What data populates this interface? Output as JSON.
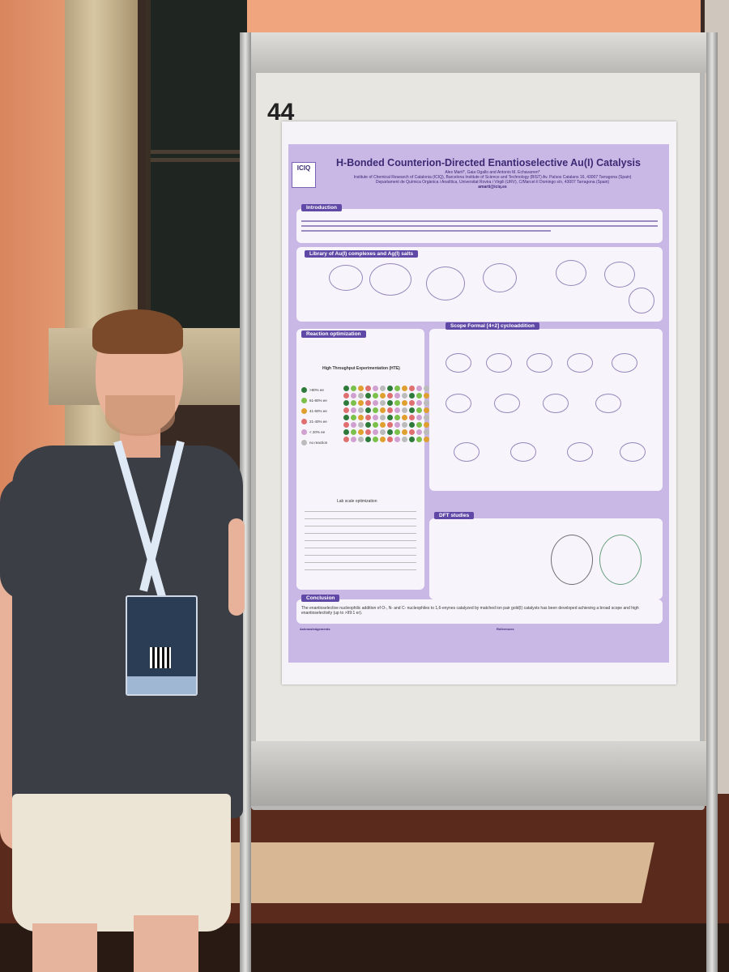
{
  "board": {
    "number": "44",
    "number_note": "8"
  },
  "poster": {
    "title": "H-Bonded Counterion-Directed Enantioselective Au(I) Catalysis",
    "authors": "Alex Martí*, Gaia Ogallo and Antonio M. Echavarren*",
    "affiliations": "Institute of Chemical Research of Catalonia (ICIQ), Barcelona Institute of Science and Technology (BIST) Av. Països Catalans 16, 43007 Tarragona (Spain)",
    "department": "Departament de Química Orgànica i Analítica, Universitat Rovira i Virgili (URV), C/Marcel·lí Domingo s/n, 43007 Tarragona (Spain)",
    "email": "amarti@iciq.es",
    "logo_text": "ICIQ",
    "sections": {
      "introduction": "Introduction",
      "library": "Library of Au(I) complexes and Ag(I) salts",
      "reaction_optimization": "Reaction optimization",
      "hte": "High Throughput Experimentation (HTE)",
      "lab_scale": "Lab scale optimization",
      "scope": "Scope Formal [4+2] cycloaddition",
      "dft": "DFT studies",
      "conclusion": "Conclusion",
      "references": "References",
      "acknowledgements": "Acknowledgements"
    },
    "hte_legend": [
      {
        "label": ">80% ee",
        "color": "#2e7a3a"
      },
      {
        "label": "61-80% ee",
        "color": "#7ac04a"
      },
      {
        "label": "41-60% ee",
        "color": "#e0a030"
      },
      {
        "label": "21-40% ee",
        "color": "#e07070"
      },
      {
        "label": "< 20% ee",
        "color": "#d0a0d0"
      },
      {
        "label": "no reaction",
        "color": "#bbbbbb"
      }
    ],
    "conclusion_text": "The enantioselective nucleophilic addition of O-, N- and C- nucleophiles to 1,6-enynes catalyzed by matched ion pair gold(I) catalysts has been developed achieving a broad scope and high enantioselectivity (up to >99:1 er)."
  }
}
